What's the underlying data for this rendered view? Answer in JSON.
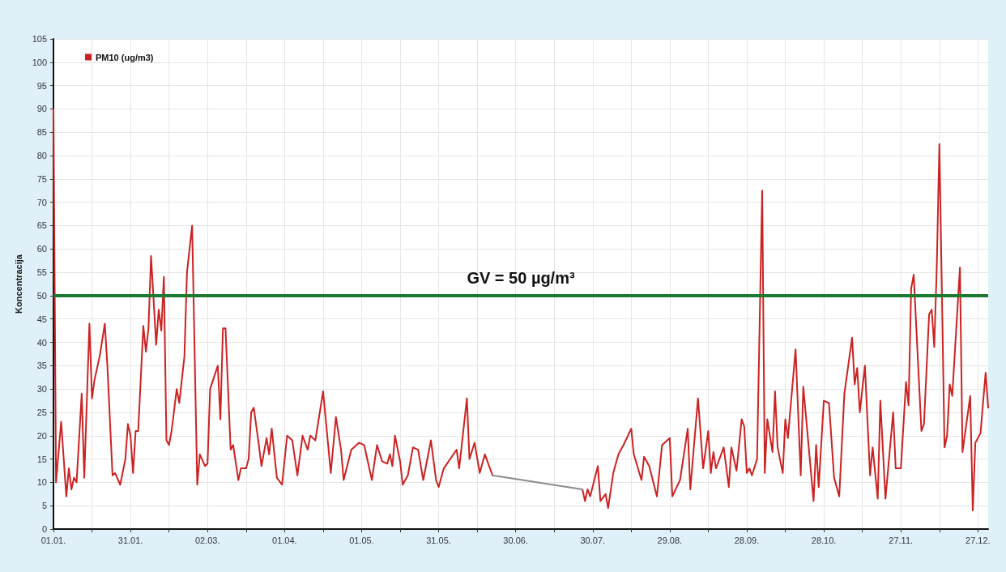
{
  "chart_data": {
    "type": "line",
    "ylabel": "Koncentracija",
    "legend": "top left",
    "grid": true,
    "marker": "none",
    "line_style": "solid",
    "xlim": [
      "--01-01",
      "--12-31"
    ],
    "ylim": [
      0,
      105
    ],
    "yticks": [
      0,
      5,
      10,
      15,
      20,
      25,
      30,
      35,
      40,
      45,
      50,
      55,
      60,
      65,
      70,
      75,
      80,
      85,
      90,
      95,
      100,
      105
    ],
    "xticks": [
      {
        "value": "--01-01",
        "label": "01.01."
      },
      {
        "value": "--01-16",
        "label": null
      },
      {
        "value": "--01-31",
        "label": "31.01."
      },
      {
        "value": "--02-15",
        "label": null
      },
      {
        "value": "--03-02",
        "label": "02.03."
      },
      {
        "value": "--03-17",
        "label": null
      },
      {
        "value": "--04-01",
        "label": "01.04."
      },
      {
        "value": "--04-16",
        "label": null
      },
      {
        "value": "--05-01",
        "label": "01.05."
      },
      {
        "value": "--05-16",
        "label": null
      },
      {
        "value": "--05-31",
        "label": "31.05."
      },
      {
        "value": "--06-15",
        "label": null
      },
      {
        "value": "--06-30",
        "label": "30.06."
      },
      {
        "value": "--07-15",
        "label": null
      },
      {
        "value": "--07-30",
        "label": "30.07."
      },
      {
        "value": "--08-14",
        "label": null
      },
      {
        "value": "--08-29",
        "label": "29.08."
      },
      {
        "value": "--09-13",
        "label": null
      },
      {
        "value": "--09-28",
        "label": "28.09."
      },
      {
        "value": "--10-13",
        "label": null
      },
      {
        "value": "--10-28",
        "label": "28.10."
      },
      {
        "value": "--11-12",
        "label": null
      },
      {
        "value": "--11-27",
        "label": "27.11."
      },
      {
        "value": "--12-12",
        "label": null
      },
      {
        "value": "--12-27",
        "label": "27.12."
      }
    ],
    "ref_lines": [
      {
        "axis": "y",
        "value": 50,
        "label": "GV = 50 µg/m³",
        "color": "#1e7a32"
      }
    ],
    "series": [
      {
        "name": "PM10 (ug/m3)",
        "color": "#cc2222",
        "x": [
          "--01-01",
          "--01-02",
          "--01-04",
          "--01-06",
          "--01-07",
          "--01-08",
          "--01-09",
          "--01-10",
          "--01-12",
          "--01-13",
          "--01-15",
          "--01-16",
          "--01-17",
          "--01-19",
          "--01-21",
          "--01-22",
          "--01-24",
          "--01-25",
          "--01-27",
          "--01-29",
          "--01-30",
          "--01-31",
          "--02-01",
          "--02-02",
          "--02-03",
          "--02-05",
          "--02-06",
          "--02-07",
          "--02-08",
          "--02-10",
          "--02-11",
          "--02-12",
          "--02-13",
          "--02-14",
          "--02-15",
          "--02-16",
          "--02-18",
          "--02-19",
          "--02-21",
          "--02-22",
          "--02-24",
          "--02-26",
          "--02-27",
          "--03-01",
          "--03-02",
          "--03-03",
          "--03-06",
          "--03-07",
          "--03-08",
          "--03-09",
          "--03-11",
          "--03-12",
          "--03-14",
          "--03-15",
          "--03-17",
          "--03-18",
          "--03-19",
          "--03-20",
          "--03-22",
          "--03-23",
          "--03-25",
          "--03-26",
          "--03-27",
          "--03-29",
          "--03-31",
          "--04-02",
          "--04-04",
          "--04-06",
          "--04-08",
          "--04-10",
          "--04-11",
          "--04-13",
          "--04-16",
          "--04-19",
          "--04-21",
          "--04-23",
          "--04-24",
          "--04-27",
          "--04-30",
          "--05-02",
          "--05-05",
          "--05-07",
          "--05-09",
          "--05-11",
          "--05-12",
          "--05-13",
          "--05-14",
          "--05-16",
          "--05-17",
          "--05-19",
          "--05-21",
          "--05-23",
          "--05-25",
          "--05-28",
          "--05-30",
          "--05-31",
          "--06-02",
          "--06-07",
          "--06-08",
          "--06-11",
          "--06-12",
          "--06-14",
          "--06-16",
          "--06-18",
          "--06-21",
          "--07-10",
          "--07-26",
          "--07-27",
          "--07-28",
          "--07-29",
          "--08-01",
          "--08-02",
          "--08-04",
          "--08-05",
          "--08-07",
          "--08-09",
          "--08-11",
          "--08-14",
          "--08-15",
          "--08-18",
          "--08-19",
          "--08-21",
          "--08-24",
          "--08-26",
          "--08-29",
          "--08-30",
          "--09-02",
          "--09-05",
          "--09-06",
          "--09-09",
          "--09-11",
          "--09-13",
          "--09-14",
          "--09-15",
          "--09-16",
          "--09-19",
          "--09-21",
          "--09-22",
          "--09-24",
          "--09-26",
          "--09-27",
          "--09-28",
          "--09-29",
          "--09-30",
          "--10-02",
          "--10-04",
          "--10-05",
          "--10-06",
          "--10-08",
          "--10-09",
          "--10-10",
          "--10-12",
          "--10-13",
          "--10-14",
          "--10-17",
          "--10-19",
          "--10-20",
          "--10-24",
          "--10-25",
          "--10-26",
          "--10-28",
          "--10-30",
          "--11-01",
          "--11-03",
          "--11-05",
          "--11-08",
          "--11-09",
          "--11-10",
          "--11-11",
          "--11-13",
          "--11-15",
          "--11-16",
          "--11-18",
          "--11-19",
          "--11-21",
          "--11-24",
          "--11-25",
          "--11-27",
          "--11-29",
          "--11-30",
          "--12-01",
          "--12-02",
          "--12-05",
          "--12-06",
          "--12-08",
          "--12-09",
          "--12-10",
          "--12-11",
          "--12-12",
          "--12-14",
          "--12-15",
          "--12-16",
          "--12-17",
          "--12-20",
          "--12-21",
          "--12-24",
          "--12-25",
          "--12-26",
          "--12-28",
          "--12-30",
          "--12-31"
        ],
        "values": [
          90,
          10,
          23,
          7,
          13,
          8.5,
          11,
          10,
          29,
          11,
          44,
          28,
          32,
          37,
          44,
          35,
          11.5,
          12,
          9.5,
          15,
          22.5,
          20,
          12,
          21,
          21,
          43.5,
          38,
          43,
          58.5,
          39.5,
          47,
          42.5,
          54,
          19,
          18,
          21,
          30,
          27,
          37,
          55,
          65,
          9.5,
          16,
          13.5,
          14,
          30,
          35,
          23.5,
          43,
          43,
          17,
          18,
          10.5,
          13,
          13,
          15,
          25,
          26,
          18,
          13.5,
          19.5,
          16,
          21.5,
          11,
          9.5,
          20,
          19,
          11.5,
          20,
          17,
          20,
          19,
          29.5,
          12,
          24,
          17,
          10.5,
          17,
          18.5,
          18,
          10.5,
          18,
          14.5,
          14,
          16,
          13.5,
          20,
          14.5,
          9.5,
          11.5,
          17.5,
          17,
          10.5,
          19,
          10.5,
          9,
          13,
          17,
          13,
          28,
          15,
          18.5,
          12,
          16,
          11.5,
          null,
          8.5,
          6,
          8.5,
          7,
          13.5,
          6,
          7.5,
          4.5,
          12,
          16,
          18,
          21.5,
          16,
          10.5,
          15.5,
          13.5,
          7,
          18,
          19.5,
          7,
          10.5,
          21.5,
          8.5,
          28,
          13,
          21,
          12,
          16.5,
          13,
          17.5,
          9,
          17.5,
          12.5,
          23.5,
          22,
          12,
          13,
          11.5,
          15,
          72.5,
          12,
          23.5,
          16.5,
          29.5,
          17.5,
          12,
          23.5,
          19.5,
          38.5,
          11.5,
          30.5,
          6,
          18,
          9,
          27.5,
          27,
          11,
          7,
          29,
          41,
          31,
          34.5,
          25,
          35,
          11.5,
          17.5,
          6.5,
          27.5,
          6.5,
          25,
          13,
          13,
          31.5,
          26.5,
          51.5,
          54.5,
          21,
          22.5,
          46,
          47,
          39,
          56.5,
          82.5,
          17.5,
          20,
          31,
          28.5,
          56,
          16.5,
          28.5,
          4,
          18.5,
          20.5,
          33.5,
          26
        ]
      },
      {
        "color": "#8c8c8c",
        "x": [
          "--06-21",
          "--07-26"
        ],
        "values": [
          11.5,
          8.5
        ]
      }
    ]
  }
}
